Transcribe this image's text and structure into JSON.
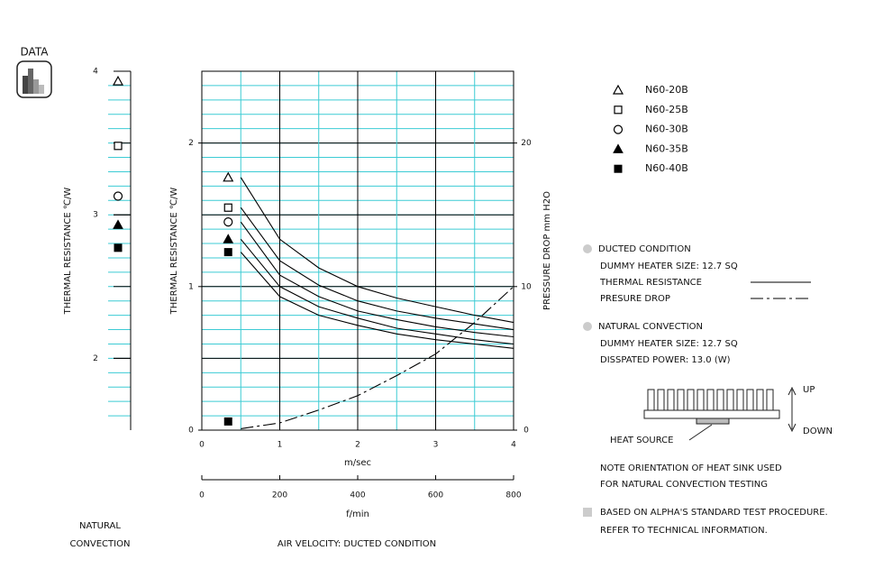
{
  "header": {
    "label": "DATA"
  },
  "chart_data": [
    {
      "type": "scatter",
      "ylabel": "THERMAL  RESISTANCE    ℃/W",
      "xlabel_lines": [
        "NATURAL",
        "CONVECTION"
      ],
      "values": [
        3.93,
        3.48,
        3.13,
        2.93,
        2.77
      ],
      "markers": [
        "triangle-open",
        "square-open",
        "circle-open",
        "triangle",
        "square"
      ],
      "color": "#000000",
      "ylim": [
        1.5,
        4
      ],
      "yticks": [
        2,
        3,
        4
      ],
      "ygrid_minor": 0.1,
      "ygrid_major": 0.5,
      "grid_color": "#3ccbd4"
    },
    {
      "type": "line",
      "xlabel": "m/sec",
      "x2label": "f/min",
      "footer": "AIR VELOCITY:  DUCTED CONDITION",
      "ylabel": "THERMAL  RESISTANCE    ℃/W",
      "y2label": "PRESSURE  DROP      mm H2O",
      "x": [
        0.5,
        1,
        1.5,
        2,
        2.5,
        3,
        3.5,
        4
      ],
      "series": [
        {
          "name": "N60-20B",
          "color": "#000000",
          "marker": "triangle-open",
          "style": "solid",
          "values": [
            1.76,
            1.33,
            1.13,
            1.0,
            0.92,
            0.86,
            0.8,
            0.75
          ]
        },
        {
          "name": "N60-25B",
          "color": "#000000",
          "marker": "square-open",
          "style": "solid",
          "values": [
            1.55,
            1.18,
            1.01,
            0.9,
            0.83,
            0.78,
            0.74,
            0.7
          ]
        },
        {
          "name": "N60-30B",
          "color": "#000000",
          "marker": "circle-open",
          "style": "solid",
          "values": [
            1.45,
            1.08,
            0.93,
            0.83,
            0.77,
            0.72,
            0.68,
            0.65
          ]
        },
        {
          "name": "N60-35B",
          "color": "#000000",
          "marker": "triangle",
          "style": "solid",
          "values": [
            1.33,
            1.0,
            0.86,
            0.78,
            0.71,
            0.67,
            0.63,
            0.6
          ]
        },
        {
          "name": "N60-40B",
          "color": "#000000",
          "marker": "square",
          "style": "solid",
          "values": [
            1.24,
            0.93,
            0.8,
            0.73,
            0.67,
            0.63,
            0.6,
            0.57
          ]
        },
        {
          "name": "PRESURE DROP",
          "color": "#000000",
          "marker": "square",
          "style": "dashdot",
          "axis": "y2",
          "values": [
            0.1,
            0.5,
            1.4,
            2.4,
            3.8,
            5.3,
            7.5,
            10
          ]
        }
      ],
      "xlim": [
        0,
        4
      ],
      "xticks": [
        0,
        1,
        2,
        3,
        4
      ],
      "x2lim": [
        0,
        800
      ],
      "x2ticks": [
        0,
        200,
        400,
        600,
        800
      ],
      "ylim": [
        0,
        2.5
      ],
      "yticks": [
        0,
        1,
        2
      ],
      "y2lim": [
        0,
        25
      ],
      "y2ticks": [
        0,
        10,
        20
      ],
      "xgrid_minor": 0.5,
      "ygrid_minor": 0.1,
      "ygrid_major": 0.5,
      "grid_color": "#3ccbd4",
      "legend": "right"
    }
  ],
  "notes": {
    "ducted": {
      "title": "DUCTED CONDITION",
      "heater": "DUMMY HEATER SIZE: 12.7 SQ",
      "thermal": "THERMAL RESISTANCE"
    },
    "natural": {
      "title": "NATURAL CONVECTION",
      "heater": "DUMMY HEATER SIZE: 12.7 SQ",
      "power": "DISSPATED POWER: 13.0 (W)"
    },
    "diagram": {
      "up": "UP",
      "down": "DOWN",
      "source": "HEAT SOURCE",
      "note_lines": [
        "NOTE ORIENTATION OF HEAT SINK USED",
        "FOR NATURAL CONVECTION TESTING"
      ]
    },
    "footnote_lines": [
      "BASED ON ALPHA'S STANDARD TEST PROCEDURE.",
      "REFER TO TECHNICAL INFORMATION."
    ]
  }
}
